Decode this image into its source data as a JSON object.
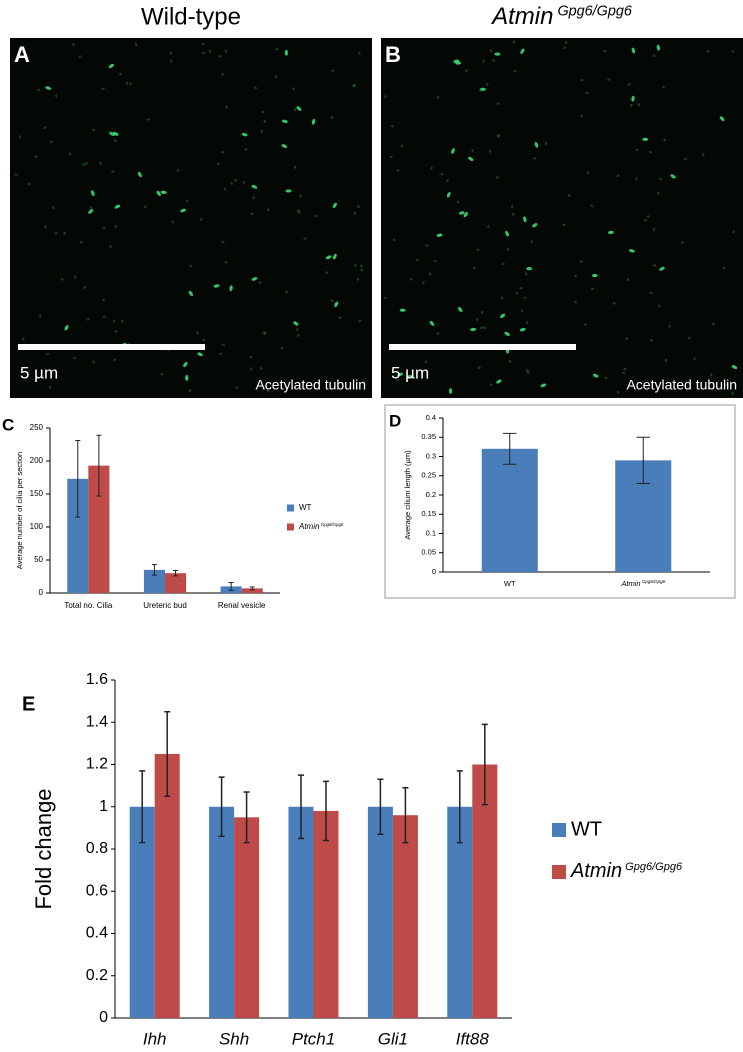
{
  "figure": {
    "panels": [
      {
        "title": "Wild-type",
        "label": "A",
        "scale_bar": "5 µm",
        "stain": "Acetylated tubulin"
      },
      {
        "title": "Atmin Gpg6/Gpg6",
        "label": "B",
        "scale_bar": "5 µm",
        "stain": "Acetylated tubulin"
      }
    ],
    "chart_labels": [
      "C",
      "D",
      "E"
    ]
  },
  "chart_data": [
    {
      "type": "bar",
      "y_label": "Average number of cilia per section",
      "categories": [
        "Total no. Cilia",
        "Ureteric bud",
        "Renal vesicle"
      ],
      "series": [
        {
          "name": "WT",
          "color": "#4a7ebb",
          "values": [
            173,
            35,
            10
          ],
          "errors": [
            58,
            8,
            6
          ]
        },
        {
          "name": "Atmin Gpg6/Gpg6",
          "color": "#be4b48",
          "values": [
            193,
            30,
            7
          ],
          "errors": [
            46,
            4,
            2
          ]
        }
      ],
      "ylim": [
        0,
        250
      ],
      "yticks": [
        0,
        50,
        100,
        150,
        200,
        250
      ]
    },
    {
      "type": "bar",
      "y_label": "Average cilium length (µm)",
      "categories": [
        "WT",
        "Atmin Gpg6/Gpg6"
      ],
      "color": "#4a7ebb",
      "values": [
        0.32,
        0.29
      ],
      "errors": [
        0.04,
        0.06
      ],
      "ylim": [
        0,
        0.4
      ],
      "yticks": [
        0,
        0.05,
        0.1,
        0.15,
        0.2,
        0.25,
        0.3,
        0.35,
        0.4
      ]
    },
    {
      "type": "bar",
      "y_label": "Fold change",
      "categories": [
        "Ihh",
        "Shh",
        "Ptch1",
        "Gli1",
        "Ift88"
      ],
      "series": [
        {
          "name": "WT",
          "color": "#4a7ebb",
          "values": [
            1,
            1,
            1,
            1,
            1
          ],
          "errors": [
            0.17,
            0.14,
            0.15,
            0.13,
            0.17
          ]
        },
        {
          "name": "Atmin Gpg6/Gpg6",
          "color": "#be4b48",
          "values": [
            1.25,
            0.95,
            0.98,
            0.96,
            1.2
          ],
          "errors": [
            0.2,
            0.12,
            0.14,
            0.13,
            0.19
          ]
        }
      ],
      "ylim": [
        0,
        1.6
      ],
      "yticks": [
        0,
        0.2,
        0.4,
        0.6,
        0.8,
        1,
        1.2,
        1.4,
        1.6
      ]
    }
  ]
}
